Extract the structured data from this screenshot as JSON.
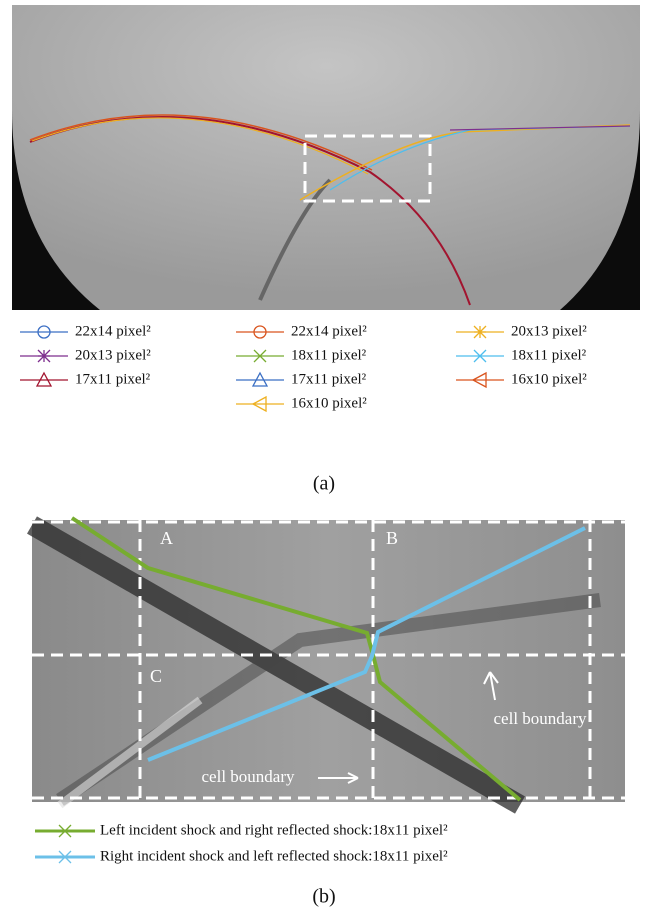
{
  "panel_a": {
    "legend": [
      {
        "name": "22x14 pixel²",
        "color": "#3b6fc4",
        "marker": "circle"
      },
      {
        "name": "22x14 pixel²",
        "color": "#d9541e",
        "marker": "circle"
      },
      {
        "name": "20x13 pixel²",
        "color": "#eeb020",
        "marker": "star"
      },
      {
        "name": "20x13 pixel²",
        "color": "#7e2f8e",
        "marker": "star"
      },
      {
        "name": "18x11 pixel²",
        "color": "#77ac30",
        "marker": "x"
      },
      {
        "name": "18x11 pixel²",
        "color": "#4dbeee",
        "marker": "x"
      },
      {
        "name": "17x11 pixel²",
        "color": "#a2142f",
        "marker": "triangle"
      },
      {
        "name": "17x11 pixel²",
        "color": "#3b6fc4",
        "marker": "triangle"
      },
      {
        "name": "16x10 pixel²",
        "color": "#d9541e",
        "marker": "left-triangle"
      },
      {
        "name": "16x10 pixel²",
        "color": "#eeb020",
        "marker": "left-triangle"
      }
    ],
    "caption": "(a)"
  },
  "panel_b": {
    "cells": [
      "A",
      "B",
      "C"
    ],
    "annotations": [
      "cell boundary",
      "cell boundary"
    ],
    "legend": [
      {
        "name": "Left incident shock and right reflected shock:18x11 pixel²",
        "color": "#77ac30"
      },
      {
        "name": "Right incident shock and left reflected shock:18x11 pixel²",
        "color": "#6cc0e8"
      }
    ],
    "caption": "(b)"
  }
}
